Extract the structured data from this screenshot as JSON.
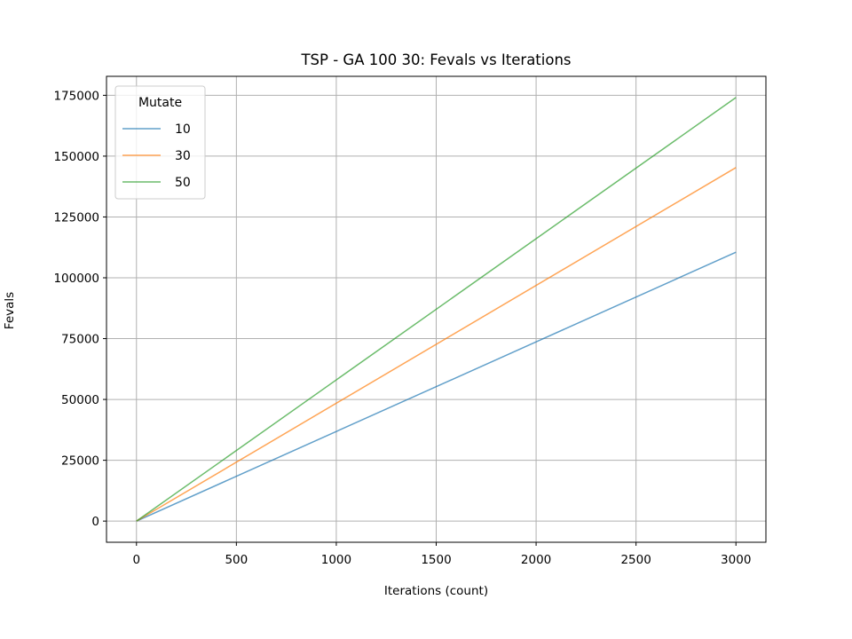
{
  "chart_data": {
    "type": "line",
    "title": "TSP - GA 100 30: Fevals vs Iterations",
    "xlabel": "Iterations (count)",
    "ylabel": "Fevals",
    "xlim": [
      -150,
      3150
    ],
    "ylim": [
      -8700,
      182800
    ],
    "x_ticks": [
      0,
      500,
      1000,
      1500,
      2000,
      2500,
      3000
    ],
    "y_ticks": [
      0,
      25000,
      50000,
      75000,
      100000,
      125000,
      150000,
      175000
    ],
    "grid": true,
    "legend": {
      "title": "Mutate",
      "placement": "top-left"
    },
    "series": [
      {
        "name": "10",
        "color": "#1f77b4",
        "x": [
          0,
          3000
        ],
        "y": [
          0,
          110500
        ]
      },
      {
        "name": "30",
        "color": "#ff7f0e",
        "x": [
          0,
          3000
        ],
        "y": [
          0,
          145300
        ]
      },
      {
        "name": "50",
        "color": "#2ca02c",
        "x": [
          0,
          3000
        ],
        "y": [
          0,
          174100
        ]
      }
    ]
  }
}
